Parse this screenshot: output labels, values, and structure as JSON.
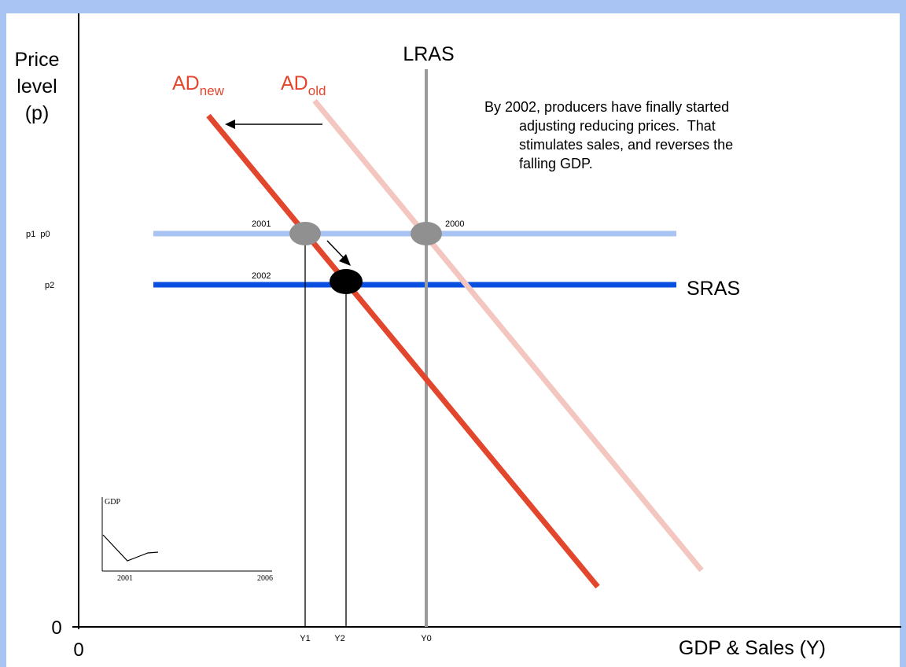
{
  "axes": {
    "y_title_line1": "Price",
    "y_title_line2": "level",
    "y_title_line3": "(p)",
    "x_title": "GDP & Sales (Y)",
    "origin_y_label": "0",
    "origin_x_label": "0"
  },
  "price_ticks": {
    "p1_p0": "p1  p0",
    "p2": "p2"
  },
  "quantity_ticks": {
    "y1": "Y1",
    "y2": "Y2",
    "y0": "Y0"
  },
  "curves": {
    "ad_new_main": "AD",
    "ad_new_sub": "new",
    "ad_old_main": "AD",
    "ad_old_sub": "old",
    "lras": "LRAS",
    "sras": "SRAS"
  },
  "points": {
    "year_2001": "2001",
    "year_2000": "2000",
    "year_2002": "2002"
  },
  "annotation": {
    "line1": "By 2002, producers have finally started",
    "line2": "adjusting reducing prices.  That",
    "line3": "stimulates sales, and reverses the",
    "line4": "falling GDP."
  },
  "inset": {
    "ylabel": "GDP",
    "x_start": "2001",
    "x_end": "2006"
  },
  "colors": {
    "background": "#a9c4f2",
    "ad_new": "#e2462c",
    "ad_old": "#f4c6c0",
    "lras": "#9a9a9a",
    "sras": "#0a50e0",
    "initial_price_line": "#a9c4f2",
    "point_gray": "#909090",
    "point_black": "#000000"
  }
}
